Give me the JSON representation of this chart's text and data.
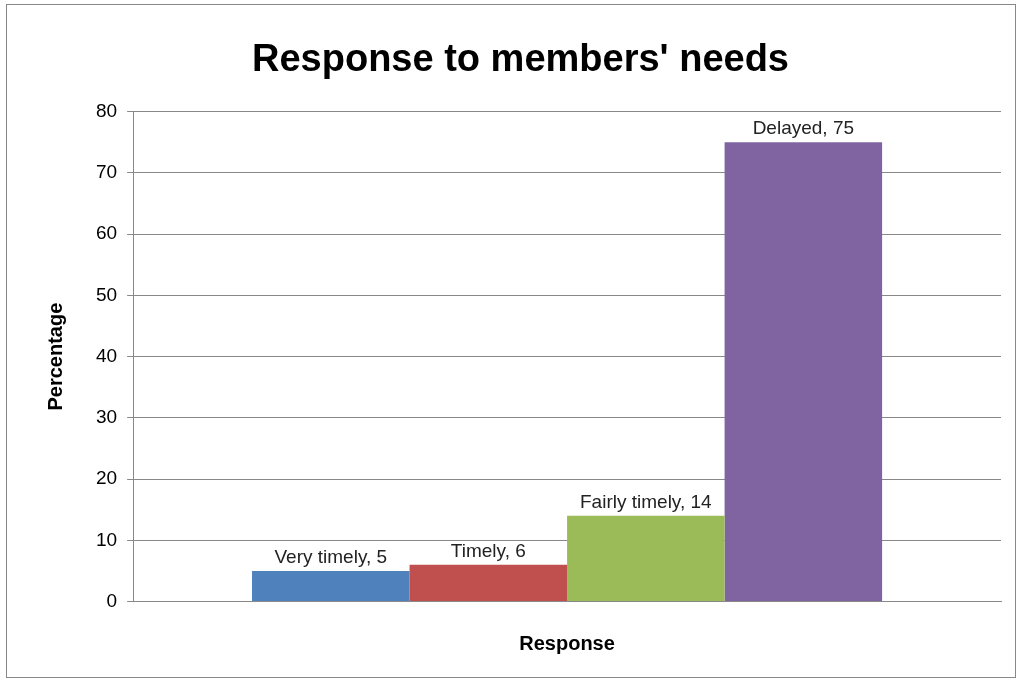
{
  "chart_data": {
    "type": "bar",
    "title": "Response to members' needs",
    "xlabel": "Response",
    "ylabel": "Percentage",
    "categories": [
      null
    ],
    "series": [
      {
        "color": "#4f81bd",
        "values": [
          5
        ],
        "value_labels": [
          "Very timely, 5"
        ]
      },
      {
        "color": "#c0504d",
        "values": [
          6
        ],
        "value_labels": [
          "Timely, 6"
        ]
      },
      {
        "color": "#9bbb59",
        "values": [
          14
        ],
        "value_labels": [
          "Fairly timely, 14"
        ]
      },
      {
        "color": "#8064a2",
        "values": [
          75
        ],
        "value_labels": [
          "Delayed, 75"
        ]
      }
    ],
    "ylim": [
      0,
      80
    ],
    "yticks": [
      0,
      10,
      20,
      30,
      40,
      50,
      60,
      70,
      80
    ],
    "grid": "y",
    "legend": false
  }
}
